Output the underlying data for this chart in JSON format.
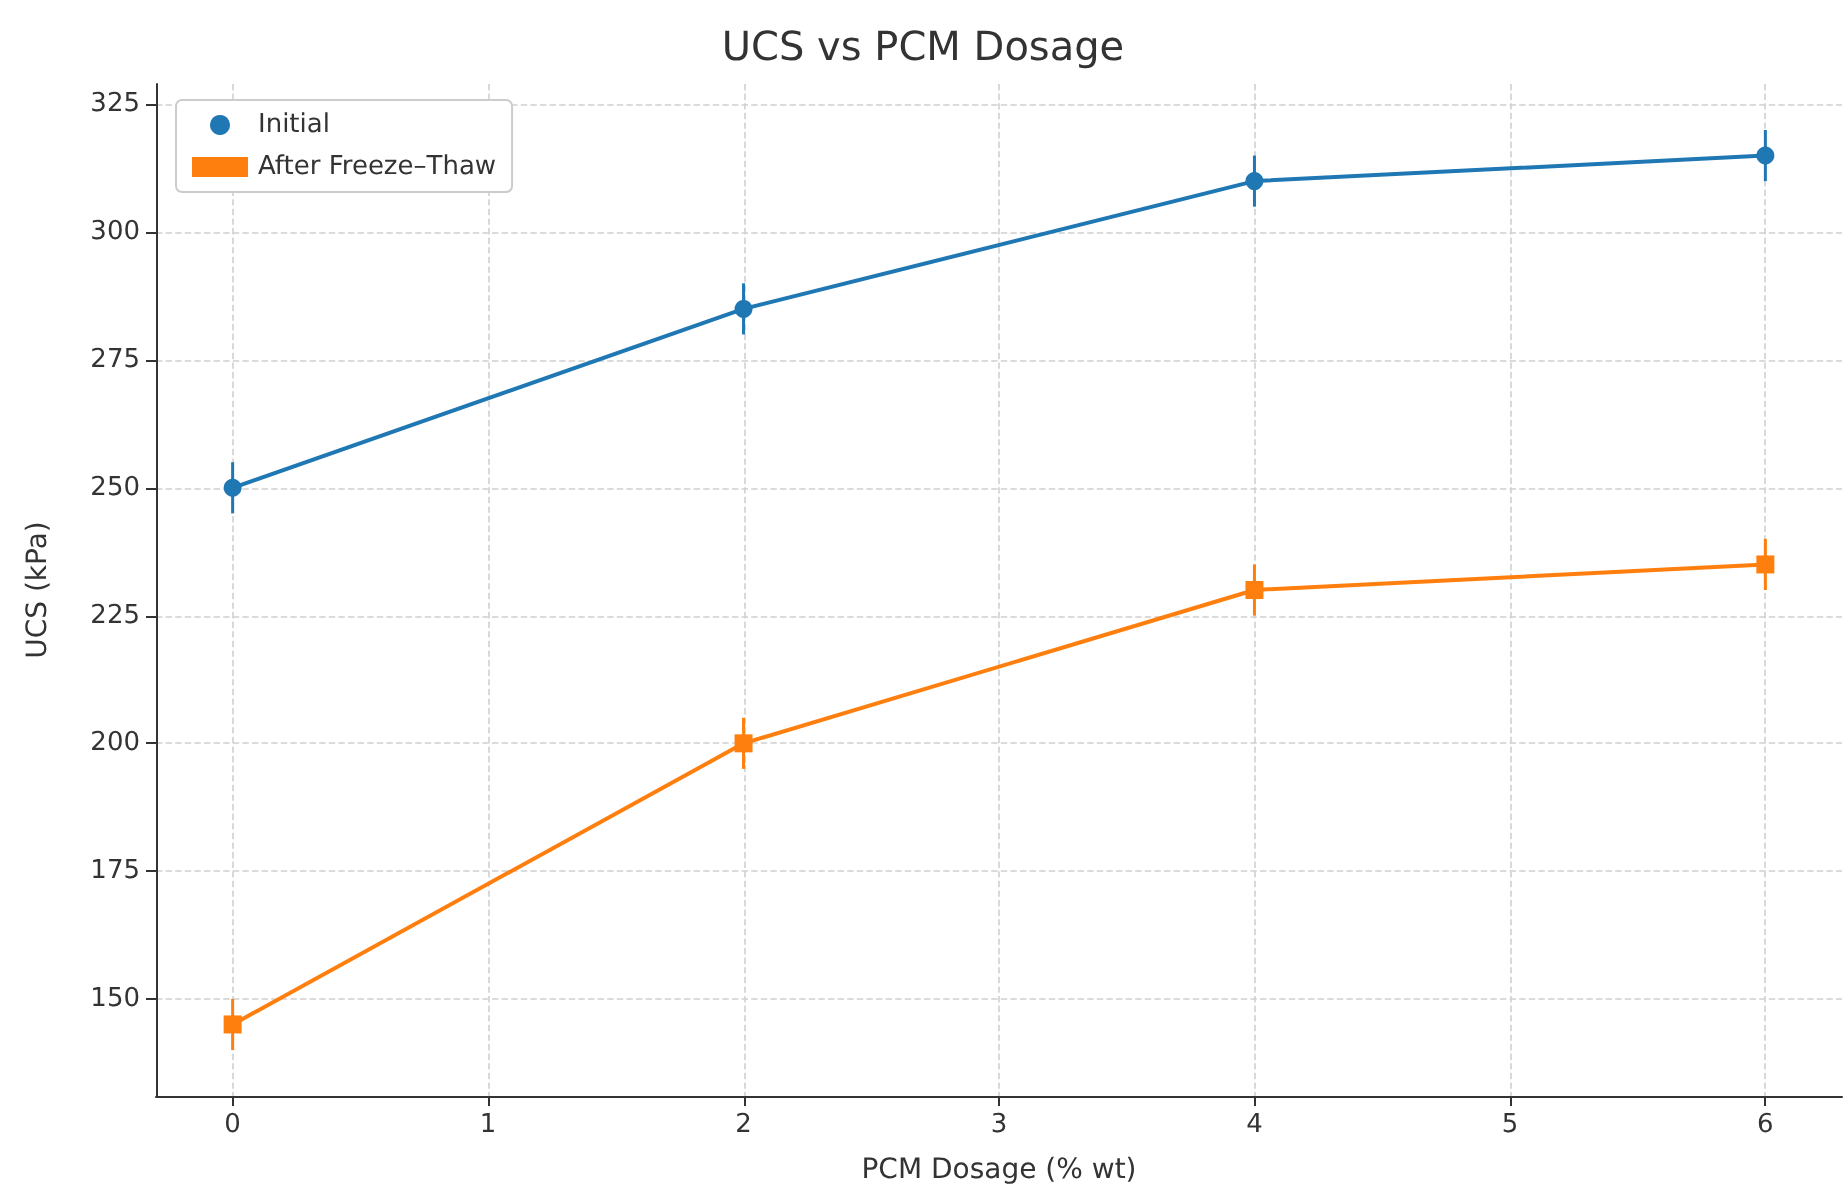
{
  "chart_data": {
    "type": "line",
    "title": "UCS vs PCM Dosage",
    "xlabel": "PCM Dosage (% wt)",
    "ylabel": "UCS (kPa)",
    "x": [
      0,
      2,
      4,
      6
    ],
    "series": [
      {
        "name": "Initial",
        "color": "#1f77b4",
        "marker": "circle",
        "values": [
          250,
          285,
          310,
          315
        ],
        "errors": [
          5,
          5,
          5,
          5
        ]
      },
      {
        "name": "After Freeze–Thaw",
        "color": "#ff7f0e",
        "marker": "square",
        "values": [
          145,
          200,
          230,
          235
        ],
        "errors": [
          5,
          5,
          5,
          5
        ]
      }
    ],
    "xlim": [
      -0.3,
      6.3
    ],
    "xticks": [
      0,
      1,
      2,
      3,
      4,
      5,
      6
    ],
    "ylim": [
      131,
      329
    ],
    "yticks": [
      150,
      175,
      200,
      225,
      250,
      275,
      300,
      325
    ],
    "grid": true,
    "legend": "top left"
  }
}
